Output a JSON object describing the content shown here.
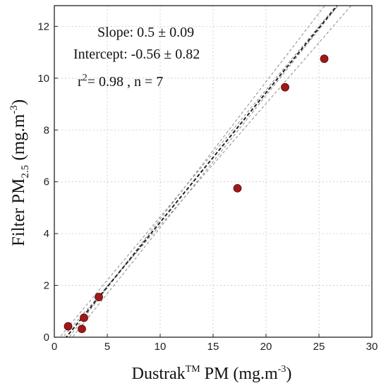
{
  "chart_data": {
    "type": "scatter",
    "xlabel": {
      "main": "Dustrak",
      "superscript": "TM",
      "rest": " PM (mg.m",
      "unit_sup": "-3",
      "close": ")"
    },
    "ylabel": {
      "main": "Filter PM",
      "subscript": "2.5",
      "rest": " (mg.m",
      "unit_sup": "-3",
      "close": ")"
    },
    "xlim": [
      0,
      30
    ],
    "ylim": [
      0,
      12.8
    ],
    "xticks": [
      "0",
      "5",
      "10",
      "15",
      "20",
      "25",
      "30"
    ],
    "yticks": [
      "0",
      "2",
      "4",
      "6",
      "8",
      "10",
      "12"
    ],
    "grid": true,
    "series": [
      {
        "x": [
          1.3,
          2.6,
          2.8,
          4.2,
          17.3,
          21.8,
          25.5
        ],
        "y": [
          0.42,
          0.32,
          0.75,
          1.55,
          5.75,
          9.65,
          10.75
        ],
        "color": "#a01818"
      }
    ],
    "fit_line": {
      "slope": 0.5,
      "intercept": -0.56
    },
    "confidence_lines": [
      {
        "slope": 0.47,
        "intercept": -0.38
      },
      {
        "slope": 0.53,
        "intercept": -0.74
      },
      {
        "slope": 0.49,
        "intercept": -0.25
      },
      {
        "slope": 0.51,
        "intercept": -0.87
      }
    ],
    "annotations": {
      "slope": "Slope: 0.5 ± 0.09",
      "intercept": "Intercept: -0.56 ± 0.82",
      "r_prefix": "r",
      "r_sup": "2",
      "r_rest": "= 0.98 , n = 7"
    }
  }
}
